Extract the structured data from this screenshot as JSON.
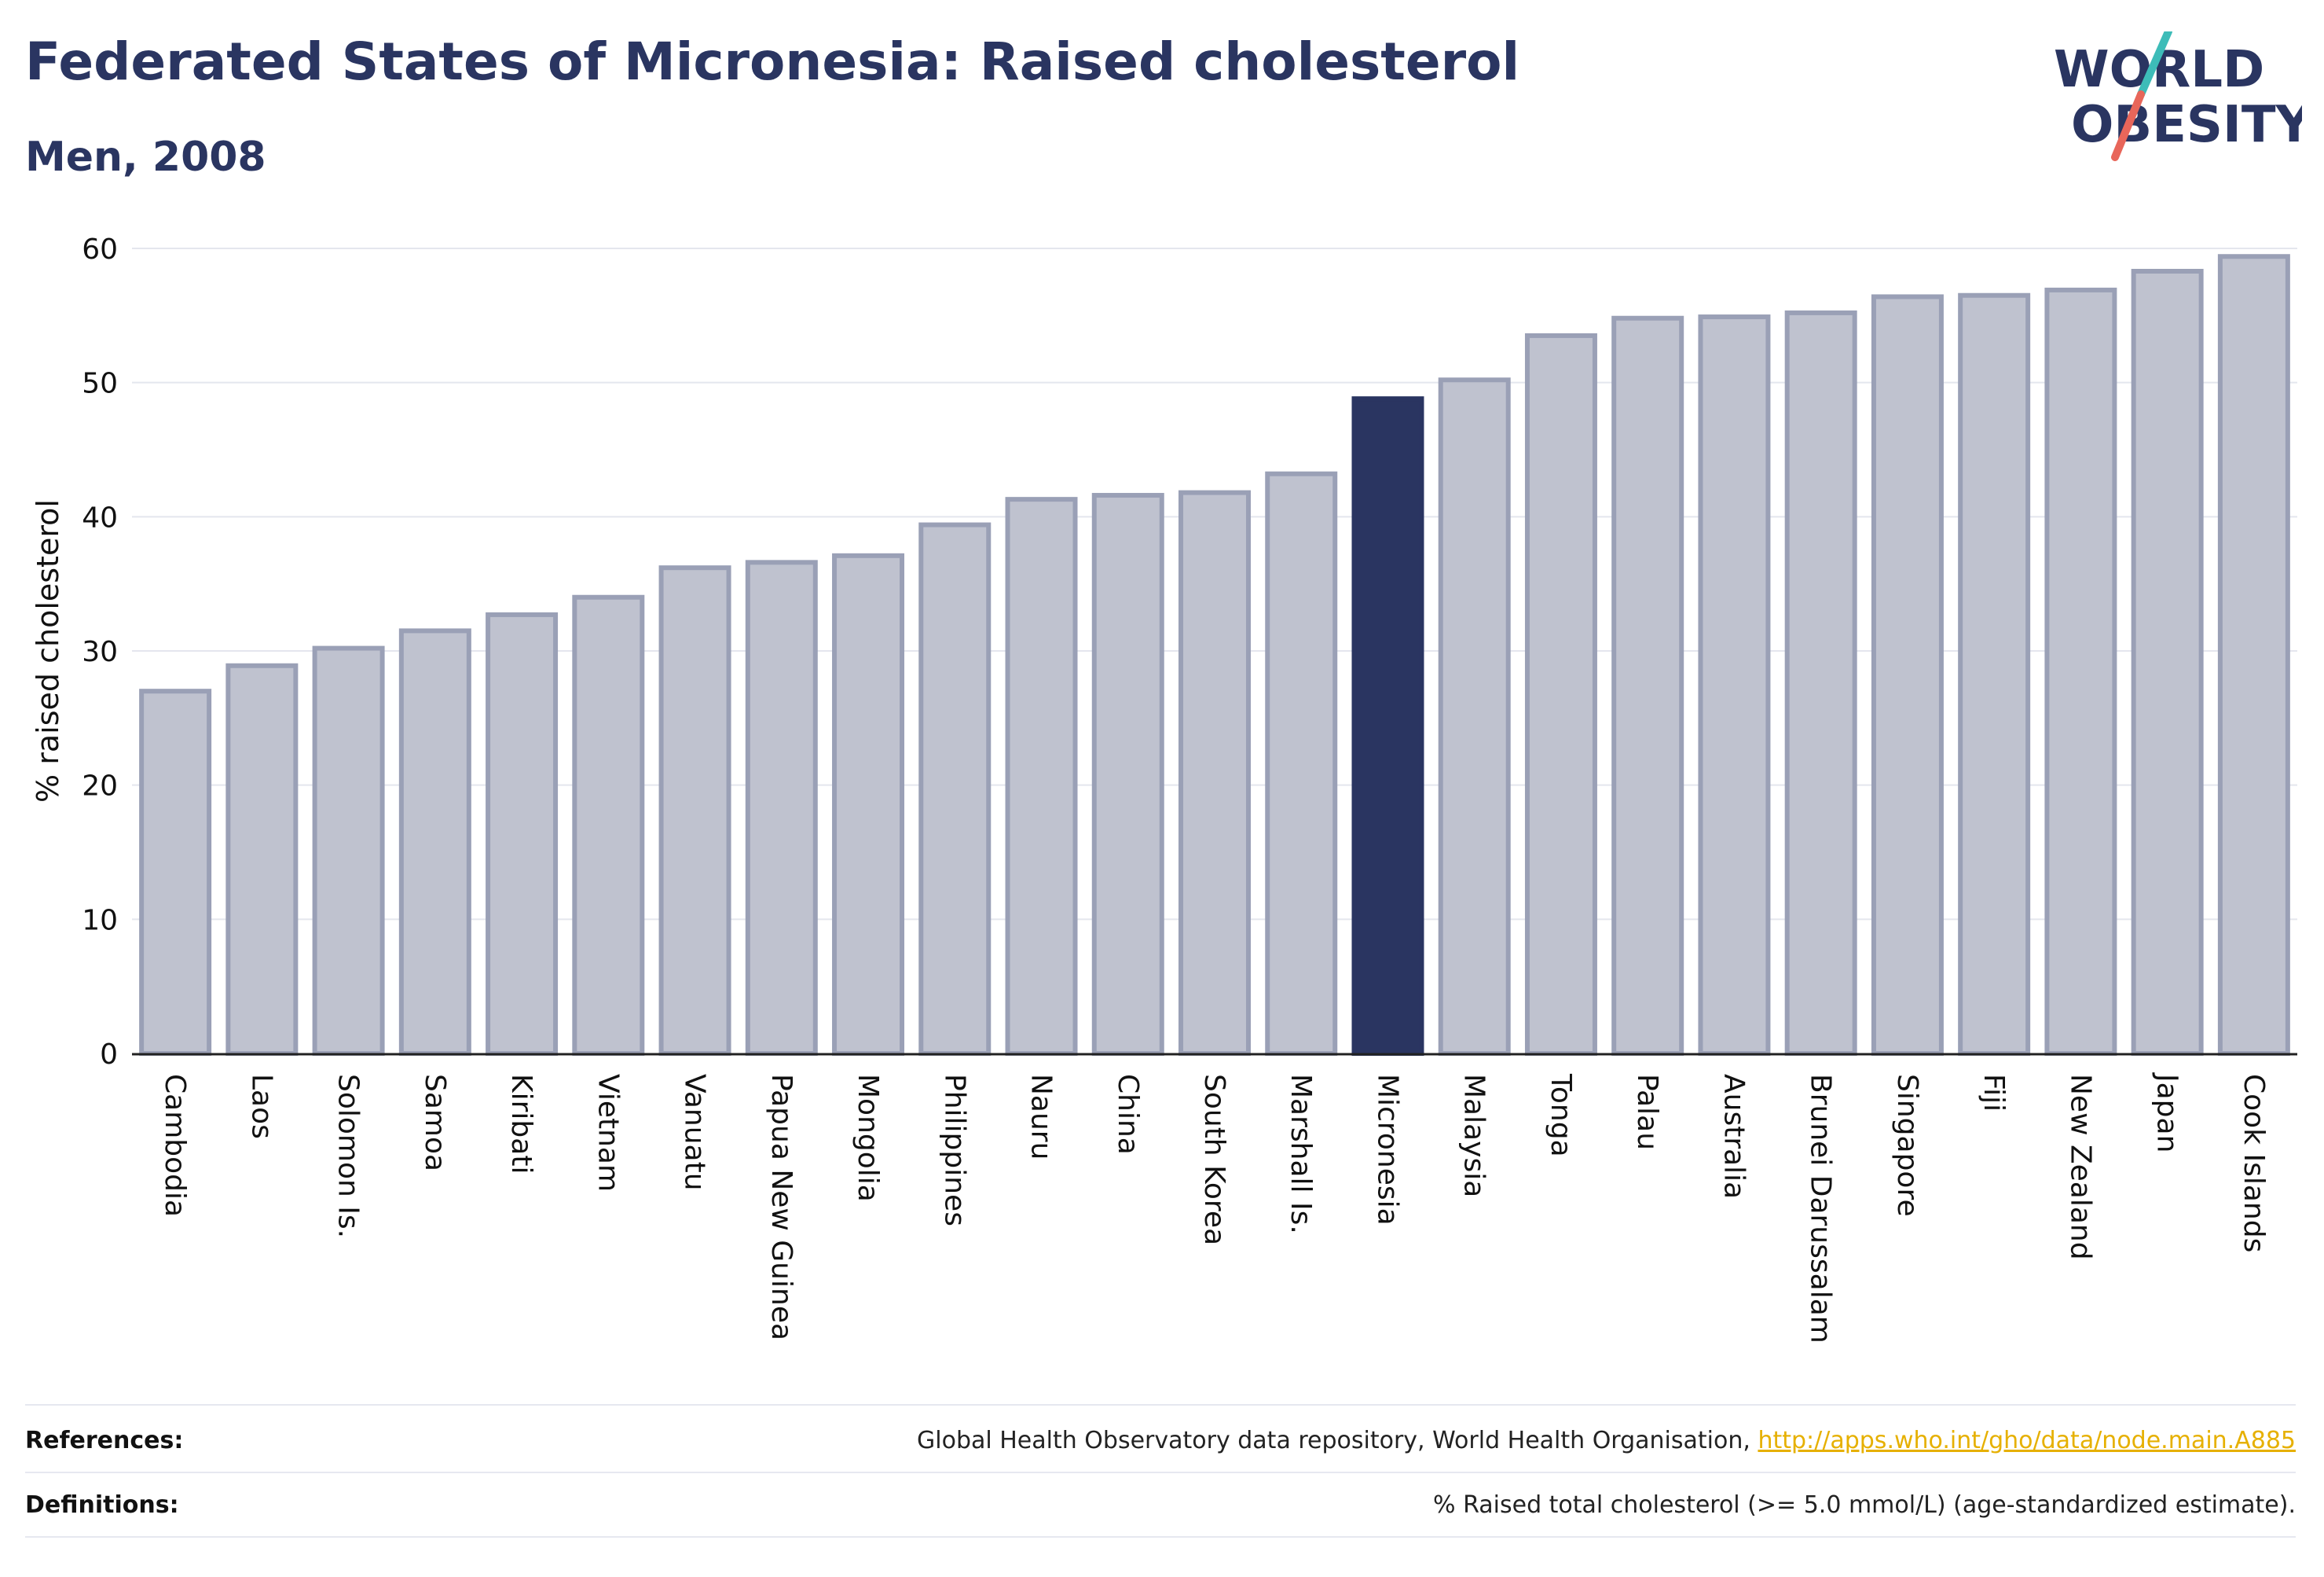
{
  "header": {
    "title": "Federated States of Micronesia: Raised cholesterol",
    "subtitle": "Men, 2008"
  },
  "logo": {
    "line1": "WORLD",
    "line2": "OBESITY",
    "color_text": "#2a3561",
    "color_slash_top": "#3dbcb8",
    "color_slash_bottom": "#e8665a"
  },
  "chart_data": {
    "type": "bar",
    "ylabel": "% raised cholesterol",
    "xlabel": "",
    "ylim": [
      0,
      60
    ],
    "yticks": [
      0,
      10,
      20,
      30,
      40,
      50,
      60
    ],
    "grid": true,
    "categories": [
      "Cambodia",
      "Laos",
      "Solomon Is.",
      "Samoa",
      "Kiribati",
      "Vietnam",
      "Vanuatu",
      "Papua New Guinea",
      "Mongolia",
      "Philippines",
      "Nauru",
      "China",
      "South Korea",
      "Marshall Is.",
      "Micronesia",
      "Malaysia",
      "Tonga",
      "Palau",
      "Australia",
      "Brunei Darussalam",
      "Singapore",
      "Fiji",
      "New Zealand",
      "Japan",
      "Cook Islands"
    ],
    "values": [
      27.0,
      28.9,
      30.2,
      31.5,
      32.7,
      34.0,
      36.2,
      36.6,
      37.1,
      39.4,
      41.3,
      41.6,
      41.8,
      43.2,
      48.8,
      50.2,
      53.5,
      54.8,
      54.9,
      55.2,
      56.4,
      56.5,
      56.9,
      58.3,
      59.4
    ],
    "highlight": "Micronesia",
    "colors": {
      "bar": "#bfc2cf",
      "bar_border": "#9aa0b6",
      "highlight": "#2a3561"
    }
  },
  "footer": {
    "references_label": "References:",
    "references_text": "Global Health Observatory data repository, World Health Organisation, ",
    "references_link": "http://apps.who.int/gho/data/node.main.A885",
    "definitions_label": "Definitions:",
    "definitions_text": "% Raised total cholesterol (>= 5.0 mmol/L) (age-standardized estimate)."
  }
}
